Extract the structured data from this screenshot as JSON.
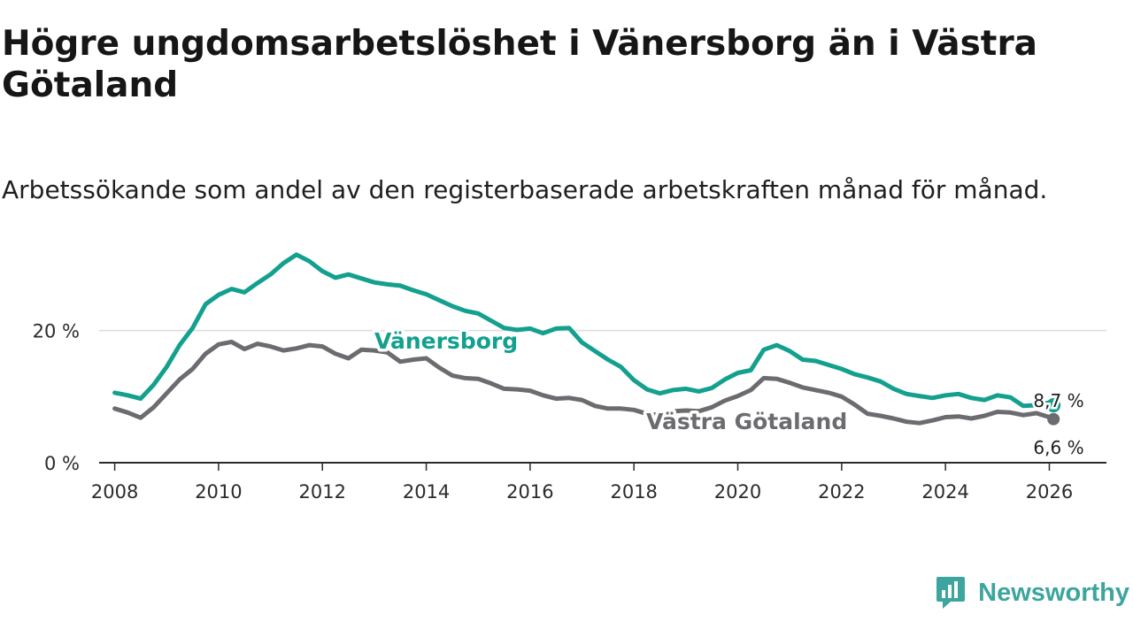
{
  "title": "Högre ungdomsarbetslöshet i Vänersborg än i Västra Götaland",
  "subtitle": "Arbetssökande som andel av den registerbaserade arbetskraften månad för månad.",
  "brand": {
    "name": "Newsworthy",
    "icon": "newsworthy-logo-icon",
    "color": "#3ca59e"
  },
  "colors": {
    "vanersborg": "#13a08e",
    "vastra": "#6c6c70",
    "grid": "#dcdcdc",
    "axis": "#2b2b2b"
  },
  "chart_data": {
    "type": "line",
    "title": "Högre ungdomsarbetslöshet i Vänersborg än i Västra Götaland",
    "xlabel": "",
    "ylabel": "",
    "xlim": [
      2007.7,
      2027.1
    ],
    "ylim": [
      0,
      30
    ],
    "yticks": [
      0,
      20
    ],
    "ytick_labels": [
      "0 %",
      "20 %"
    ],
    "xticks": [
      2008,
      2010,
      2012,
      2014,
      2016,
      2018,
      2020,
      2022,
      2024,
      2026
    ],
    "xtick_labels": [
      "2008",
      "2010",
      "2012",
      "2014",
      "2016",
      "2018",
      "2020",
      "2022",
      "2024",
      "2026"
    ],
    "grid": "horizontal",
    "series": [
      {
        "name": "Vänersborg",
        "label": "Vänersborg",
        "end_label": "8,7 %",
        "x": [
          2008.0,
          2008.25,
          2008.5,
          2008.75,
          2009.0,
          2009.25,
          2009.5,
          2009.75,
          2010.0,
          2010.25,
          2010.5,
          2010.75,
          2011.0,
          2011.25,
          2011.5,
          2011.75,
          2012.0,
          2012.25,
          2012.5,
          2012.75,
          2013.0,
          2013.25,
          2013.5,
          2013.75,
          2014.0,
          2014.25,
          2014.5,
          2014.75,
          2015.0,
          2015.25,
          2015.5,
          2015.75,
          2016.0,
          2016.25,
          2016.5,
          2016.75,
          2017.0,
          2017.25,
          2017.5,
          2017.75,
          2018.0,
          2018.25,
          2018.5,
          2018.75,
          2019.0,
          2019.25,
          2019.5,
          2019.75,
          2020.0,
          2020.25,
          2020.5,
          2020.75,
          2021.0,
          2021.25,
          2021.5,
          2021.75,
          2022.0,
          2022.25,
          2022.5,
          2022.75,
          2023.0,
          2023.25,
          2023.5,
          2023.75,
          2024.0,
          2024.25,
          2024.5,
          2024.75,
          2025.0,
          2025.25,
          2025.5,
          2025.75,
          2026.0,
          2026.08
        ],
        "values": [
          10.6,
          10.2,
          9.7,
          11.8,
          14.5,
          17.8,
          20.4,
          24.0,
          25.4,
          26.3,
          25.8,
          27.2,
          28.5,
          30.2,
          31.5,
          30.5,
          29.0,
          28.0,
          28.5,
          27.9,
          27.3,
          27.0,
          26.8,
          26.1,
          25.5,
          24.6,
          23.7,
          23.0,
          22.6,
          21.5,
          20.4,
          20.1,
          20.3,
          19.6,
          20.3,
          20.4,
          18.2,
          16.9,
          15.6,
          14.5,
          12.5,
          11.1,
          10.5,
          11.0,
          11.2,
          10.8,
          11.3,
          12.6,
          13.6,
          14.0,
          17.1,
          17.8,
          16.9,
          15.6,
          15.4,
          14.8,
          14.2,
          13.4,
          12.9,
          12.3,
          11.2,
          10.4,
          10.1,
          9.8,
          10.2,
          10.4,
          9.8,
          9.5,
          10.2,
          9.9,
          8.6,
          8.7,
          9.1,
          8.7
        ]
      },
      {
        "name": "Västra Götaland",
        "label": "Västra Götaland",
        "end_label": "6,6 %",
        "x": [
          2008.0,
          2008.25,
          2008.5,
          2008.75,
          2009.0,
          2009.25,
          2009.5,
          2009.75,
          2010.0,
          2010.25,
          2010.5,
          2010.75,
          2011.0,
          2011.25,
          2011.5,
          2011.75,
          2012.0,
          2012.25,
          2012.5,
          2012.75,
          2013.0,
          2013.25,
          2013.5,
          2013.75,
          2014.0,
          2014.25,
          2014.5,
          2014.75,
          2015.0,
          2015.25,
          2015.5,
          2015.75,
          2016.0,
          2016.25,
          2016.5,
          2016.75,
          2017.0,
          2017.25,
          2017.5,
          2017.75,
          2018.0,
          2018.25,
          2018.5,
          2018.75,
          2019.0,
          2019.25,
          2019.5,
          2019.75,
          2020.0,
          2020.25,
          2020.5,
          2020.75,
          2021.0,
          2021.25,
          2021.5,
          2021.75,
          2022.0,
          2022.25,
          2022.5,
          2022.75,
          2023.0,
          2023.25,
          2023.5,
          2023.75,
          2024.0,
          2024.25,
          2024.5,
          2024.75,
          2025.0,
          2025.25,
          2025.5,
          2025.75,
          2026.0,
          2026.08
        ],
        "values": [
          8.2,
          7.6,
          6.8,
          8.4,
          10.5,
          12.6,
          14.2,
          16.5,
          17.9,
          18.3,
          17.2,
          18.0,
          17.6,
          17.0,
          17.3,
          17.8,
          17.6,
          16.5,
          15.8,
          17.1,
          17.0,
          16.7,
          15.3,
          15.6,
          15.8,
          14.4,
          13.2,
          12.8,
          12.7,
          12.0,
          11.2,
          11.1,
          10.9,
          10.2,
          9.7,
          9.8,
          9.5,
          8.6,
          8.2,
          8.2,
          8.0,
          7.4,
          7.2,
          7.8,
          7.9,
          7.8,
          8.4,
          9.4,
          10.1,
          11.0,
          12.8,
          12.7,
          12.1,
          11.4,
          11.0,
          10.6,
          10.0,
          8.8,
          7.4,
          7.1,
          6.7,
          6.2,
          6.0,
          6.4,
          6.9,
          7.0,
          6.7,
          7.1,
          7.7,
          7.6,
          7.2,
          7.5,
          6.9,
          6.6
        ]
      }
    ]
  }
}
